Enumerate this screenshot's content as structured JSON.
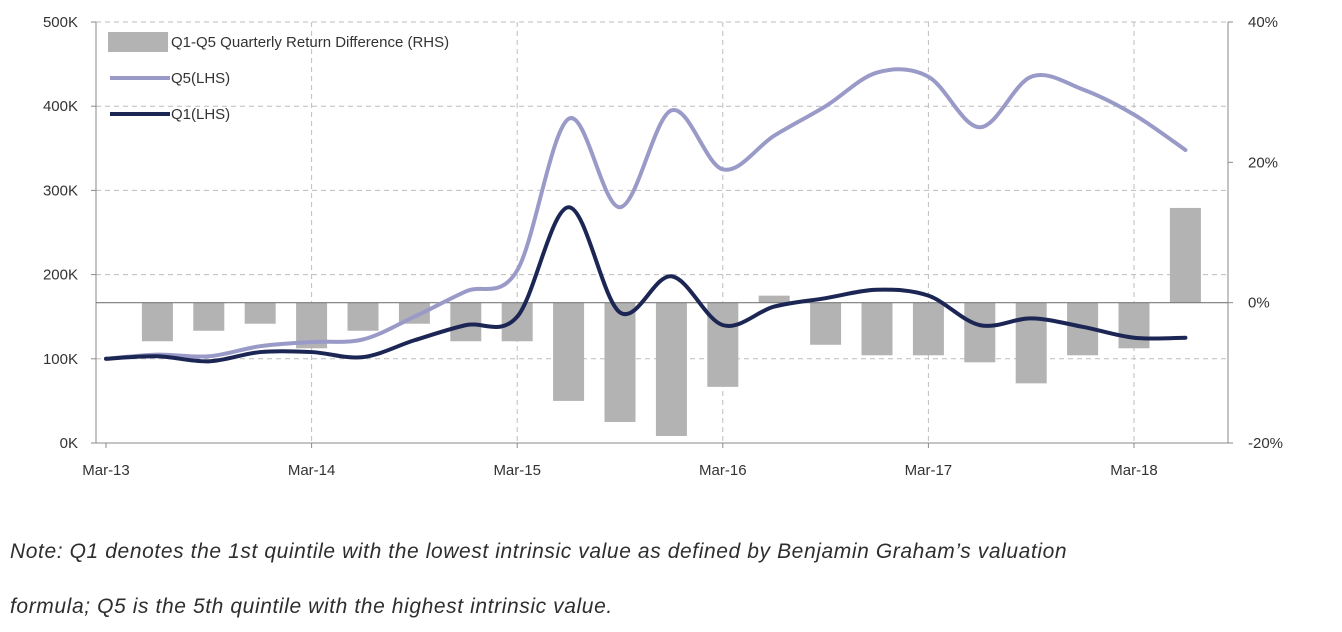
{
  "chart_data": {
    "type": "bar+line",
    "x_categories": [
      "Mar-13",
      "Jun-13",
      "Sep-13",
      "Dec-13",
      "Mar-14",
      "Jun-14",
      "Sep-14",
      "Dec-14",
      "Mar-15",
      "Jun-15",
      "Sep-15",
      "Dec-15",
      "Mar-16",
      "Jun-16",
      "Sep-16",
      "Dec-16",
      "Mar-17",
      "Jun-17",
      "Sep-17",
      "Dec-17",
      "Mar-18",
      "Jun-18"
    ],
    "x_tick_labels": [
      "Mar-13",
      "Mar-14",
      "Mar-15",
      "Mar-16",
      "Mar-17",
      "Mar-18"
    ],
    "left_axis": {
      "ylim": [
        0,
        500000
      ],
      "tick_labels": [
        "0K",
        "100K",
        "200K",
        "300K",
        "400K",
        "500K"
      ]
    },
    "right_axis": {
      "ylim": [
        -0.2,
        0.4
      ],
      "tick_labels": [
        "-20%",
        "0%",
        "20%",
        "40%"
      ]
    },
    "grid": true,
    "legend_position": "top-left",
    "series": [
      {
        "name": "Q1-Q5 Quarterly Return Difference (RHS)",
        "kind": "bar",
        "axis": "right",
        "color": "#b3b3b3",
        "x": [
          "Jun-13",
          "Sep-13",
          "Dec-13",
          "Mar-14",
          "Jun-14",
          "Sep-14",
          "Dec-14",
          "Mar-15",
          "Jun-15",
          "Sep-15",
          "Dec-15",
          "Mar-16",
          "Jun-16",
          "Sep-16",
          "Dec-16",
          "Mar-17",
          "Jun-17",
          "Sep-17",
          "Dec-17",
          "Mar-18",
          "Jun-18"
        ],
        "values": [
          -0.055,
          -0.04,
          -0.03,
          -0.065,
          -0.04,
          -0.03,
          -0.055,
          -0.055,
          -0.14,
          -0.17,
          -0.19,
          -0.12,
          0.01,
          -0.06,
          -0.075,
          -0.075,
          -0.085,
          -0.115,
          -0.075,
          -0.065,
          0.135
        ]
      },
      {
        "name": "Q5(LHS)",
        "kind": "line",
        "axis": "left",
        "color": "#9a9ac8",
        "x": [
          "Mar-13",
          "Jun-13",
          "Sep-13",
          "Dec-13",
          "Mar-14",
          "Jun-14",
          "Sep-14",
          "Dec-14",
          "Mar-15",
          "Jun-15",
          "Sep-15",
          "Dec-15",
          "Mar-16",
          "Jun-16",
          "Sep-16",
          "Dec-16",
          "Mar-17",
          "Jun-17",
          "Sep-17",
          "Dec-17",
          "Mar-18",
          "Jun-18"
        ],
        "values": [
          100000,
          105000,
          103000,
          115000,
          120000,
          123000,
          150000,
          180000,
          205000,
          385000,
          280000,
          395000,
          325000,
          365000,
          400000,
          440000,
          435000,
          375000,
          435000,
          420000,
          390000,
          348000
        ]
      },
      {
        "name": "Q1(LHS)",
        "kind": "line",
        "axis": "left",
        "color": "#1c2654",
        "x": [
          "Mar-13",
          "Jun-13",
          "Sep-13",
          "Dec-13",
          "Mar-14",
          "Jun-14",
          "Sep-14",
          "Dec-14",
          "Mar-15",
          "Jun-15",
          "Sep-15",
          "Dec-15",
          "Mar-16",
          "Jun-16",
          "Sep-16",
          "Dec-16",
          "Mar-17",
          "Jun-17",
          "Sep-17",
          "Dec-17",
          "Mar-18",
          "Jun-18"
        ],
        "values": [
          100000,
          103000,
          97000,
          108000,
          108000,
          102000,
          122000,
          140000,
          150000,
          280000,
          155000,
          198000,
          140000,
          162000,
          172000,
          182000,
          175000,
          140000,
          148000,
          138000,
          125000,
          125000
        ]
      }
    ]
  },
  "note": {
    "line1": "Note: Q1 denotes the 1st quintile with the lowest intrinsic value as defined by Benjamin Graham’s valuation",
    "line2": "formula; Q5 is the 5th quintile with the highest intrinsic value."
  }
}
